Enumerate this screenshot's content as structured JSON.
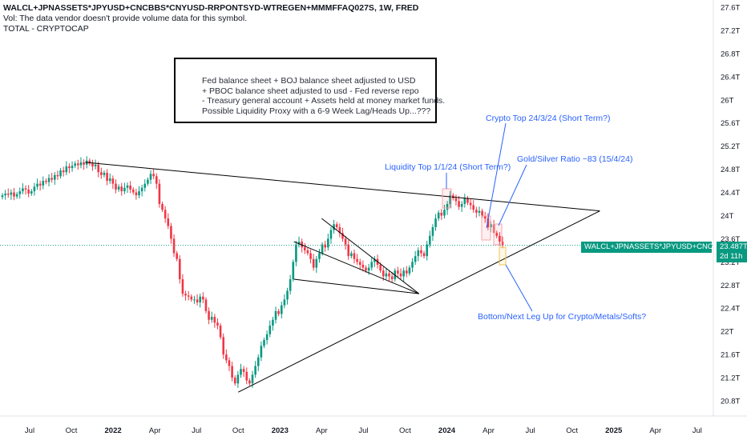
{
  "header": {
    "symbol": "WALCL+JPNASSETS*JPYUSD+CNCBBS*CNYUSD-RRPONTSYD-WTREGEN+MMMFFAQ027S, 1W, FRED",
    "vol_note": "Vol: The data vendor doesn't provide volume data for this symbol.",
    "overlay": "TOTAL - CRYPTOCAP"
  },
  "note_box": {
    "lines": [
      "Fed balance sheet + BOJ balance sheet adjusted to USD",
      "+ PBOC balance sheet adjusted to usd - Fed reverse repo",
      "- Treasury general account + Assets held at money market funds.",
      "Possible Liquidity Proxy with a 6-9 Week Lag/Heads Up...???"
    ]
  },
  "annotations": {
    "crypto_top": "Crypto Top 24/3/24 (Short Term?)",
    "gold_silver": "Gold/Silver Ratio ~83 (15/4/24)",
    "liquidity_top": "Liquidity Top 1/1/24 (Short Term?)",
    "bottom": "Bottom/Next Leg Up for Crypto/Metals/Softs?"
  },
  "price_label": {
    "name": "WALCL+JPNASSETS*JPYUSD+CNCBBS*CNYUSD-...",
    "value": "23.487T",
    "countdown": "2d 11h"
  },
  "colors": {
    "up": "#089981",
    "down": "#f23645",
    "annotation": "#2962ff",
    "trendline": "#000000"
  },
  "chart_data": {
    "type": "candlestick",
    "y_unit": "T",
    "y_ticks": [
      "27.6T",
      "27.2T",
      "26.8T",
      "26.4T",
      "26T",
      "25.6T",
      "25.2T",
      "24.8T",
      "24.4T",
      "24T",
      "23.6T",
      "23.2T",
      "22.8T",
      "22.4T",
      "22T",
      "21.6T",
      "21.2T",
      "20.8T"
    ],
    "x_ticks": [
      "Jul",
      "Oct",
      "2022",
      "Apr",
      "Jul",
      "Oct",
      "2023",
      "Apr",
      "Jul",
      "Oct",
      "2024",
      "Apr",
      "Jul",
      "Oct",
      "2025",
      "Apr",
      "Jul"
    ],
    "bold_x_ticks": [
      "2022",
      "2023",
      "2024",
      "2025"
    ],
    "ylim": [
      20.6,
      27.7
    ],
    "last_value": 23.487,
    "series_close": [
      24.35,
      24.38,
      24.36,
      24.4,
      24.33,
      24.37,
      24.42,
      24.47,
      24.45,
      24.38,
      24.42,
      24.5,
      24.55,
      24.52,
      24.6,
      24.58,
      24.65,
      24.62,
      24.7,
      24.68,
      24.78,
      24.75,
      24.85,
      24.82,
      24.86,
      24.9,
      24.87,
      24.92,
      24.88,
      24.95,
      24.9,
      24.85,
      24.88,
      24.75,
      24.7,
      24.74,
      24.6,
      24.64,
      24.55,
      24.45,
      24.5,
      24.42,
      24.48,
      24.52,
      24.45,
      24.4,
      24.35,
      24.42,
      24.48,
      24.55,
      24.62,
      24.72,
      24.68,
      24.55,
      24.2,
      24.1,
      23.95,
      23.82,
      23.6,
      23.35,
      23.25,
      22.9,
      22.65,
      22.62,
      22.6,
      22.55,
      22.55,
      22.5,
      22.6,
      22.55,
      22.35,
      22.2,
      22.25,
      22.15,
      22.1,
      21.9,
      21.6,
      21.5,
      21.4,
      21.2,
      21.1,
      21.25,
      21.35,
      21.3,
      21.15,
      21.1,
      21.25,
      21.4,
      21.55,
      21.75,
      21.85,
      21.95,
      22.1,
      22.2,
      22.35,
      22.3,
      22.45,
      22.55,
      22.7,
      22.9,
      23.2,
      23.5,
      23.55,
      23.45,
      23.4,
      23.35,
      23.25,
      23.1,
      23.25,
      23.35,
      23.5,
      23.45,
      23.6,
      23.75,
      23.85,
      23.8,
      23.7,
      23.6,
      23.5,
      23.3,
      23.35,
      23.25,
      23.2,
      23.15,
      23.1,
      23.05,
      23.1,
      23.2,
      23.25,
      23.15,
      23.05,
      22.95,
      23.0,
      22.95,
      22.9,
      23.05,
      23.0,
      22.95,
      23.05,
      23.0,
      23.1,
      23.2,
      23.3,
      23.4,
      23.35,
      23.3,
      23.5,
      23.65,
      23.8,
      23.95,
      24.05,
      24.0,
      24.1,
      24.2,
      24.35,
      24.3,
      24.25,
      24.15,
      24.2,
      24.3,
      24.22,
      24.18,
      24.1,
      24.05,
      24.08,
      24.0,
      23.95,
      23.8,
      23.85,
      23.7,
      23.65,
      23.55,
      23.487
    ],
    "trendlines": [
      {
        "from": [
          "2021-11",
          24.92
        ],
        "to": [
          "2024-12",
          24.08
        ]
      },
      {
        "from": [
          "2022-10",
          20.95
        ],
        "to": [
          "2024-12",
          24.08
        ]
      },
      {
        "from": [
          "2023-02",
          23.55
        ],
        "to": [
          "2023-11",
          22.65
        ]
      },
      {
        "from": [
          "2023-04",
          23.95
        ],
        "to": [
          "2023-11",
          22.65
        ]
      },
      {
        "from": [
          "2023-02",
          22.9
        ],
        "to": [
          "2023-11",
          22.65
        ]
      }
    ],
    "highlight_boxes": [
      "Liquidity Top 1/1/24",
      "Crypto Top 24/3/24",
      "Gold/Silver Ratio 15/4/24"
    ]
  }
}
